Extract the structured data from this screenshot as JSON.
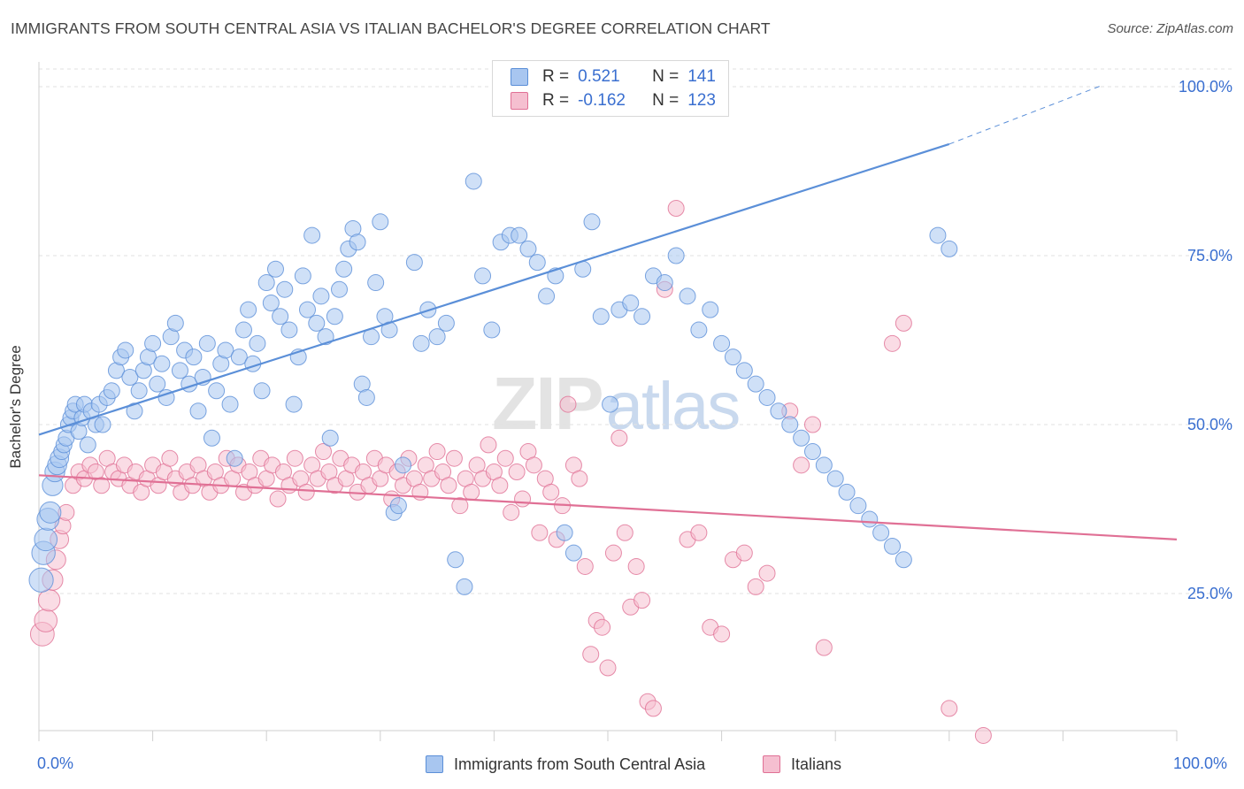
{
  "title": "IMMIGRANTS FROM SOUTH CENTRAL ASIA VS ITALIAN BACHELOR'S DEGREE CORRELATION CHART",
  "source": "Source: ZipAtlas.com",
  "watermark": {
    "zip": "ZIP",
    "atlas": "atlas"
  },
  "legend": {
    "rows": [
      {
        "r_label": "R =",
        "r_value": "0.521",
        "n_label": "N =",
        "n_value": "141",
        "color": "#7aa6e6"
      },
      {
        "r_label": "R =",
        "r_value": "-0.162",
        "n_label": "N =",
        "n_value": "123",
        "color": "#f0a3bd"
      }
    ]
  },
  "bottom_legend": [
    {
      "label": "Immigrants from South Central Asia",
      "color": "#7aa6e6"
    },
    {
      "label": "Italians",
      "color": "#f0a3bd"
    }
  ],
  "chart_data": {
    "type": "scatter",
    "ylabel": "Bachelor's Degree",
    "xlim": [
      0,
      100
    ],
    "ylim": [
      0,
      100
    ],
    "x_tick_labels": [
      "0.0%",
      "100.0%"
    ],
    "y_tick_values": [
      25,
      50,
      75,
      100
    ],
    "y_tick_labels": [
      "25.0%",
      "50.0%",
      "75.0%",
      "100.0%"
    ],
    "grid": true,
    "series": [
      {
        "name": "Immigrants from South Central Asia",
        "color": "#5b8fd8",
        "fill": "#a8c6f0",
        "trend": {
          "x0": 0,
          "y0": 48.5,
          "x1": 80,
          "y1": 91.5,
          "dashed_to_x": 100,
          "dashed_to_y": 102
        },
        "points": [
          [
            0.2,
            27
          ],
          [
            0.4,
            31
          ],
          [
            0.6,
            33
          ],
          [
            0.8,
            36
          ],
          [
            1.0,
            37
          ],
          [
            1.2,
            41
          ],
          [
            1.4,
            43
          ],
          [
            1.6,
            44
          ],
          [
            1.8,
            45
          ],
          [
            2.0,
            46
          ],
          [
            2.2,
            47
          ],
          [
            2.4,
            48
          ],
          [
            2.6,
            50
          ],
          [
            2.8,
            51
          ],
          [
            3.0,
            52
          ],
          [
            3.2,
            53
          ],
          [
            3.5,
            49
          ],
          [
            3.8,
            51
          ],
          [
            4.0,
            53
          ],
          [
            4.3,
            47
          ],
          [
            4.6,
            52
          ],
          [
            5.0,
            50
          ],
          [
            5.3,
            53
          ],
          [
            5.6,
            50
          ],
          [
            6.0,
            54
          ],
          [
            6.4,
            55
          ],
          [
            6.8,
            58
          ],
          [
            7.2,
            60
          ],
          [
            7.6,
            61
          ],
          [
            8.0,
            57
          ],
          [
            8.4,
            52
          ],
          [
            8.8,
            55
          ],
          [
            9.2,
            58
          ],
          [
            9.6,
            60
          ],
          [
            10.0,
            62
          ],
          [
            10.4,
            56
          ],
          [
            10.8,
            59
          ],
          [
            11.2,
            54
          ],
          [
            11.6,
            63
          ],
          [
            12.0,
            65
          ],
          [
            12.4,
            58
          ],
          [
            12.8,
            61
          ],
          [
            13.2,
            56
          ],
          [
            13.6,
            60
          ],
          [
            14.0,
            52
          ],
          [
            14.4,
            57
          ],
          [
            14.8,
            62
          ],
          [
            15.2,
            48
          ],
          [
            15.6,
            55
          ],
          [
            16.0,
            59
          ],
          [
            16.4,
            61
          ],
          [
            16.8,
            53
          ],
          [
            17.2,
            45
          ],
          [
            17.6,
            60
          ],
          [
            18.0,
            64
          ],
          [
            18.4,
            67
          ],
          [
            18.8,
            59
          ],
          [
            19.2,
            62
          ],
          [
            19.6,
            55
          ],
          [
            20.0,
            71
          ],
          [
            20.4,
            68
          ],
          [
            20.8,
            73
          ],
          [
            21.2,
            66
          ],
          [
            21.6,
            70
          ],
          [
            22.0,
            64
          ],
          [
            22.4,
            53
          ],
          [
            22.8,
            60
          ],
          [
            23.2,
            72
          ],
          [
            23.6,
            67
          ],
          [
            24.0,
            78
          ],
          [
            24.4,
            65
          ],
          [
            24.8,
            69
          ],
          [
            25.2,
            63
          ],
          [
            25.6,
            48
          ],
          [
            26.0,
            66
          ],
          [
            26.4,
            70
          ],
          [
            26.8,
            73
          ],
          [
            27.2,
            76
          ],
          [
            27.6,
            79
          ],
          [
            28.0,
            77
          ],
          [
            28.4,
            56
          ],
          [
            28.8,
            54
          ],
          [
            29.2,
            63
          ],
          [
            29.6,
            71
          ],
          [
            30.0,
            80
          ],
          [
            30.4,
            66
          ],
          [
            30.8,
            64
          ],
          [
            31.2,
            37
          ],
          [
            31.6,
            38
          ],
          [
            32.0,
            44
          ],
          [
            33.0,
            74
          ],
          [
            33.6,
            62
          ],
          [
            34.2,
            67
          ],
          [
            35.0,
            63
          ],
          [
            35.8,
            65
          ],
          [
            36.6,
            30
          ],
          [
            37.4,
            26
          ],
          [
            38.2,
            86
          ],
          [
            39.0,
            72
          ],
          [
            39.8,
            64
          ],
          [
            40.6,
            77
          ],
          [
            41.4,
            78
          ],
          [
            42.2,
            78
          ],
          [
            43.0,
            76
          ],
          [
            43.8,
            74
          ],
          [
            44.6,
            69
          ],
          [
            45.4,
            72
          ],
          [
            46.2,
            34
          ],
          [
            47.0,
            31
          ],
          [
            47.8,
            73
          ],
          [
            48.6,
            80
          ],
          [
            49.4,
            66
          ],
          [
            50.2,
            53
          ],
          [
            51.0,
            67
          ],
          [
            52.0,
            68
          ],
          [
            53.0,
            66
          ],
          [
            54.0,
            72
          ],
          [
            55.0,
            71
          ],
          [
            56.0,
            75
          ],
          [
            57.0,
            69
          ],
          [
            58.0,
            64
          ],
          [
            59.0,
            67
          ],
          [
            60.0,
            62
          ],
          [
            61.0,
            60
          ],
          [
            62.0,
            58
          ],
          [
            63.0,
            56
          ],
          [
            64.0,
            54
          ],
          [
            65.0,
            52
          ],
          [
            66.0,
            50
          ],
          [
            67.0,
            48
          ],
          [
            68.0,
            46
          ],
          [
            69.0,
            44
          ],
          [
            70.0,
            42
          ],
          [
            71.0,
            40
          ],
          [
            72.0,
            38
          ],
          [
            73.0,
            36
          ],
          [
            74.0,
            34
          ],
          [
            75.0,
            32
          ],
          [
            76.0,
            30
          ],
          [
            79.0,
            78
          ],
          [
            80.0,
            76
          ]
        ]
      },
      {
        "name": "Italians",
        "color": "#e07095",
        "fill": "#f5bfd0",
        "trend": {
          "x0": 0,
          "y0": 42.5,
          "x1": 100,
          "y1": 33
        },
        "points": [
          [
            0.3,
            19
          ],
          [
            0.6,
            21
          ],
          [
            0.9,
            24
          ],
          [
            1.2,
            27
          ],
          [
            1.5,
            30
          ],
          [
            1.8,
            33
          ],
          [
            2.1,
            35
          ],
          [
            2.4,
            37
          ],
          [
            3.0,
            41
          ],
          [
            3.5,
            43
          ],
          [
            4.0,
            42
          ],
          [
            4.5,
            44
          ],
          [
            5.0,
            43
          ],
          [
            5.5,
            41
          ],
          [
            6.0,
            45
          ],
          [
            6.5,
            43
          ],
          [
            7.0,
            42
          ],
          [
            7.5,
            44
          ],
          [
            8.0,
            41
          ],
          [
            8.5,
            43
          ],
          [
            9.0,
            40
          ],
          [
            9.5,
            42
          ],
          [
            10.0,
            44
          ],
          [
            10.5,
            41
          ],
          [
            11.0,
            43
          ],
          [
            11.5,
            45
          ],
          [
            12.0,
            42
          ],
          [
            12.5,
            40
          ],
          [
            13.0,
            43
          ],
          [
            13.5,
            41
          ],
          [
            14.0,
            44
          ],
          [
            14.5,
            42
          ],
          [
            15.0,
            40
          ],
          [
            15.5,
            43
          ],
          [
            16.0,
            41
          ],
          [
            16.5,
            45
          ],
          [
            17.0,
            42
          ],
          [
            17.5,
            44
          ],
          [
            18.0,
            40
          ],
          [
            18.5,
            43
          ],
          [
            19.0,
            41
          ],
          [
            19.5,
            45
          ],
          [
            20.0,
            42
          ],
          [
            20.5,
            44
          ],
          [
            21.0,
            39
          ],
          [
            21.5,
            43
          ],
          [
            22.0,
            41
          ],
          [
            22.5,
            45
          ],
          [
            23.0,
            42
          ],
          [
            23.5,
            40
          ],
          [
            24.0,
            44
          ],
          [
            24.5,
            42
          ],
          [
            25.0,
            46
          ],
          [
            25.5,
            43
          ],
          [
            26.0,
            41
          ],
          [
            26.5,
            45
          ],
          [
            27.0,
            42
          ],
          [
            27.5,
            44
          ],
          [
            28.0,
            40
          ],
          [
            28.5,
            43
          ],
          [
            29.0,
            41
          ],
          [
            29.5,
            45
          ],
          [
            30.0,
            42
          ],
          [
            30.5,
            44
          ],
          [
            31.0,
            39
          ],
          [
            31.5,
            43
          ],
          [
            32.0,
            41
          ],
          [
            32.5,
            45
          ],
          [
            33.0,
            42
          ],
          [
            33.5,
            40
          ],
          [
            34.0,
            44
          ],
          [
            34.5,
            42
          ],
          [
            35.0,
            46
          ],
          [
            35.5,
            43
          ],
          [
            36.0,
            41
          ],
          [
            36.5,
            45
          ],
          [
            37.0,
            38
          ],
          [
            37.5,
            42
          ],
          [
            38.0,
            40
          ],
          [
            38.5,
            44
          ],
          [
            39.0,
            42
          ],
          [
            39.5,
            47
          ],
          [
            40.0,
            43
          ],
          [
            40.5,
            41
          ],
          [
            41.0,
            45
          ],
          [
            41.5,
            37
          ],
          [
            42.0,
            43
          ],
          [
            42.5,
            39
          ],
          [
            43.0,
            46
          ],
          [
            43.5,
            44
          ],
          [
            44.0,
            34
          ],
          [
            44.5,
            42
          ],
          [
            45.0,
            40
          ],
          [
            45.5,
            33
          ],
          [
            46.0,
            38
          ],
          [
            46.5,
            53
          ],
          [
            47.0,
            44
          ],
          [
            47.5,
            42
          ],
          [
            48.0,
            29
          ],
          [
            48.5,
            16
          ],
          [
            49.0,
            21
          ],
          [
            49.5,
            20
          ],
          [
            50.0,
            14
          ],
          [
            50.5,
            31
          ],
          [
            51.0,
            48
          ],
          [
            51.5,
            34
          ],
          [
            52.0,
            23
          ],
          [
            52.5,
            29
          ],
          [
            53.0,
            24
          ],
          [
            53.5,
            9
          ],
          [
            54.0,
            8
          ],
          [
            55.0,
            70
          ],
          [
            56.0,
            82
          ],
          [
            57.0,
            33
          ],
          [
            58.0,
            34
          ],
          [
            59.0,
            20
          ],
          [
            60.0,
            19
          ],
          [
            61.0,
            30
          ],
          [
            62.0,
            31
          ],
          [
            63.0,
            26
          ],
          [
            64.0,
            28
          ],
          [
            66.0,
            52
          ],
          [
            67.0,
            44
          ],
          [
            68.0,
            50
          ],
          [
            69.0,
            17
          ],
          [
            75.0,
            62
          ],
          [
            76.0,
            65
          ],
          [
            80.0,
            8
          ],
          [
            83.0,
            4
          ]
        ]
      }
    ]
  }
}
